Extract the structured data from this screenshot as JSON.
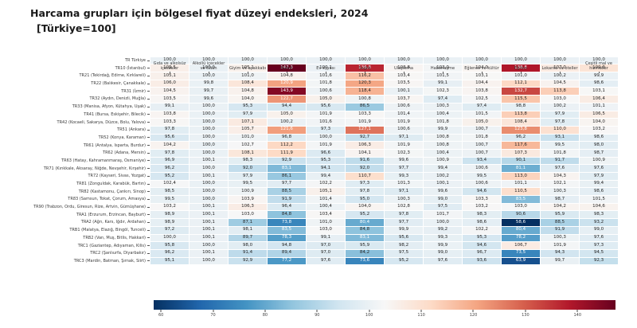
{
  "title": "Harcama grupları için bölgesel fiyat düzeyi endeksleri, 2024",
  "subtitle": "[Türkiye=100]",
  "chart_data": {
    "type": "heatmap",
    "title": "Harcama grupları için bölgesel fiyat düzeyi endeksleri, 2024",
    "subtitle": "[Türkiye=100]",
    "columns": [
      "Gıda ve alkolsüz içecekler",
      "Alkollü içecekler ve tütün",
      "Giyim ve ayakkabı",
      "Konut",
      "Ev eşyası",
      "Sağlık",
      "Ulaştırma",
      "Haberleşme",
      "Eğlence ve kültür",
      "Eğitim",
      "Lokanta ve oteller",
      "Çeşitli mal ve hizmetler"
    ],
    "rows": [
      "TR Türkiye",
      "TR10 (İstanbul)",
      "TR21 (Tekirdağ, Edirne, Kırklareli)",
      "TR22 (Balıkesir, Çanakkale)",
      "TR31 (İzmir)",
      "TR32 (Aydın, Denizli, Muğla)",
      "TR33 (Manisa, Afyon, Kütahya, Uşak)",
      "TR41 (Bursa, Eskişehir, Bilecik)",
      "TR42 (Kocaeli, Sakarya, Düzce, Bolu, Yalova)",
      "TR51 (Ankara)",
      "TR52 (Konya, Karaman)",
      "TR61 (Antalya, Isparta, Burdur)",
      "TR62 (Adana, Mersin)",
      "TR63 (Hatay, Kahramanmaraş, Osmaniye)",
      "TR71 (Kırıkkale, Aksaray, Niğde, Nevşehir, Kırşehir)",
      "TR72 (Kayseri, Sivas, Yozgat)",
      "TR81 (Zonguldak, Karabük, Bartın)",
      "TR82 (Kastamonu, Çankırı, Sinop)",
      "TR83 (Samsun, Tokat, Çorum, Amasya)",
      "TR90 (Trabzon, Ordu, Giresun, Rize, Artvin, Gümüşhane)",
      "TRA1 (Erzurum, Erzincan, Bayburt)",
      "TRA2 (Ağrı, Kars, Iğdır, Ardahan)",
      "TRB1 (Malatya, Elazığ, Bingöl, Tunceli)",
      "TRB2 (Van, Muş, Bitlis, Hakkari)",
      "TRC1 (Gaziantep, Adıyaman, Kilis)",
      "TRC2 (Şanlıurfa, Diyarbakır)",
      "TRC3 (Mardin, Batman, Şırnak, Siirt)"
    ],
    "values": [
      [
        100.0,
        100.0,
        100.0,
        100.0,
        100.0,
        100.0,
        100.0,
        100.0,
        100.0,
        100.0,
        100.0,
        100.0
      ],
      [
        105.5,
        100.0,
        105.1,
        147.3,
        100.1,
        136.8,
        103.8,
        102.0,
        104.0,
        138.8,
        107.0,
        109.0
      ],
      [
        105.1,
        100.0,
        101.0,
        104.8,
        101.6,
        116.2,
        103.4,
        101.5,
        103.1,
        101.0,
        100.2,
        99.9
      ],
      [
        106.0,
        99.8,
        108.4,
        120.9,
        101.8,
        120.3,
        103.5,
        99.1,
        104.4,
        112.1,
        104.5,
        98.6
      ],
      [
        104.5,
        99.7,
        104.8,
        143.9,
        100.6,
        118.4,
        100.1,
        102.3,
        103.8,
        132.7,
        113.8,
        103.1
      ],
      [
        103.5,
        99.6,
        104.0,
        122.7,
        105.0,
        100.8,
        103.7,
        97.4,
        102.5,
        115.5,
        103.0,
        106.4
      ],
      [
        99.1,
        100.0,
        95.3,
        94.4,
        95.6,
        86.5,
        100.6,
        100.3,
        97.4,
        98.8,
        100.2,
        101.1
      ],
      [
        103.8,
        100.0,
        97.9,
        105.0,
        101.9,
        103.3,
        101.4,
        100.4,
        101.5,
        113.8,
        97.9,
        106.5
      ],
      [
        103.3,
        100.0,
        107.1,
        100.2,
        101.6,
        101.9,
        101.9,
        101.8,
        105.0,
        108.4,
        97.8,
        104.0
      ],
      [
        97.8,
        100.0,
        105.7,
        121.6,
        97.3,
        127.1,
        100.6,
        99.9,
        100.7,
        123.8,
        110.0,
        103.2
      ],
      [
        95.6,
        100.0,
        101.0,
        96.8,
        100.0,
        92.7,
        97.1,
        100.8,
        101.8,
        96.2,
        93.1,
        98.6
      ],
      [
        104.2,
        100.0,
        102.7,
        112.2,
        101.9,
        106.3,
        101.9,
        100.8,
        100.7,
        117.6,
        99.5,
        98.0
      ],
      [
        97.8,
        100.0,
        108.1,
        111.9,
        96.6,
        104.1,
        102.3,
        100.4,
        100.7,
        107.3,
        101.8,
        98.7
      ],
      [
        96.9,
        100.1,
        98.3,
        92.9,
        95.3,
        91.6,
        99.6,
        100.9,
        93.4,
        90.1,
        91.7,
        100.9
      ],
      [
        96.2,
        100.0,
        92.0,
        83.1,
        94.1,
        92.0,
        97.7,
        99.4,
        100.6,
        81.1,
        97.6,
        97.6
      ],
      [
        95.2,
        100.1,
        97.9,
        86.1,
        99.4,
        110.7,
        99.3,
        100.2,
        99.5,
        113.0,
        104.3,
        97.9
      ],
      [
        102.4,
        100.0,
        99.5,
        97.7,
        102.2,
        97.3,
        101.3,
        100.1,
        100.6,
        101.1,
        102.1,
        99.4
      ],
      [
        98.5,
        100.0,
        100.9,
        88.5,
        105.1,
        97.8,
        97.1,
        99.6,
        94.6,
        110.5,
        100.3,
        98.6
      ],
      [
        99.5,
        100.0,
        103.9,
        91.9,
        101.4,
        95.0,
        100.3,
        99.0,
        103.3,
        83.5,
        98.7,
        101.5
      ],
      [
        103.2,
        100.1,
        106.3,
        96.4,
        100.4,
        104.0,
        102.8,
        97.5,
        103.2,
        103.0,
        104.2,
        104.6
      ],
      [
        98.9,
        100.1,
        103.0,
        84.8,
        103.4,
        95.2,
        97.8,
        101.7,
        98.3,
        90.6,
        95.9,
        98.3
      ],
      [
        98.9,
        100.1,
        87.1,
        73.8,
        101.0,
        80.4,
        97.7,
        100.0,
        98.6,
        58.6,
        88.5,
        93.2
      ],
      [
        97.2,
        100.1,
        98.1,
        83.5,
        103.0,
        84.8,
        99.9,
        99.2,
        102.2,
        80.4,
        91.9,
        99.0
      ],
      [
        100.0,
        100.1,
        89.7,
        78.3,
        99.1,
        83.1,
        95.6,
        99.3,
        95.3,
        78.2,
        100.3,
        97.6
      ],
      [
        95.8,
        100.0,
        98.0,
        94.8,
        97.0,
        95.9,
        98.2,
        99.9,
        94.6,
        106.7,
        101.9,
        97.3
      ],
      [
        96.2,
        100.1,
        91.4,
        89.4,
        97.0,
        84.2,
        97.5,
        99.0,
        96.7,
        73.5,
        94.3,
        94.5
      ],
      [
        95.1,
        100.0,
        92.9,
        77.2,
        97.6,
        73.6,
        95.2,
        97.6,
        93.6,
        63.9,
        99.7,
        92.3
      ]
    ],
    "vmin": 58.6,
    "vmax": 147.3,
    "colormap": "RdBu_r",
    "colorbar_ticks": [
      60,
      70,
      80,
      90,
      100,
      110,
      120,
      130,
      140
    ],
    "decimal_separator": ",",
    "legend_position": "bottom",
    "grid": false
  },
  "colors": {
    "rdbu_r_stops": [
      "#053061",
      "#2166ac",
      "#4393c3",
      "#92c5de",
      "#d1e5f0",
      "#f7f7f7",
      "#fddbc7",
      "#f4a582",
      "#d6604d",
      "#b2182b",
      "#67001f"
    ],
    "dark_text": "#262626",
    "light_text": "#ffffff",
    "label_color": "#3a3a3a",
    "tick_color": "#444444",
    "background": "#ffffff"
  }
}
